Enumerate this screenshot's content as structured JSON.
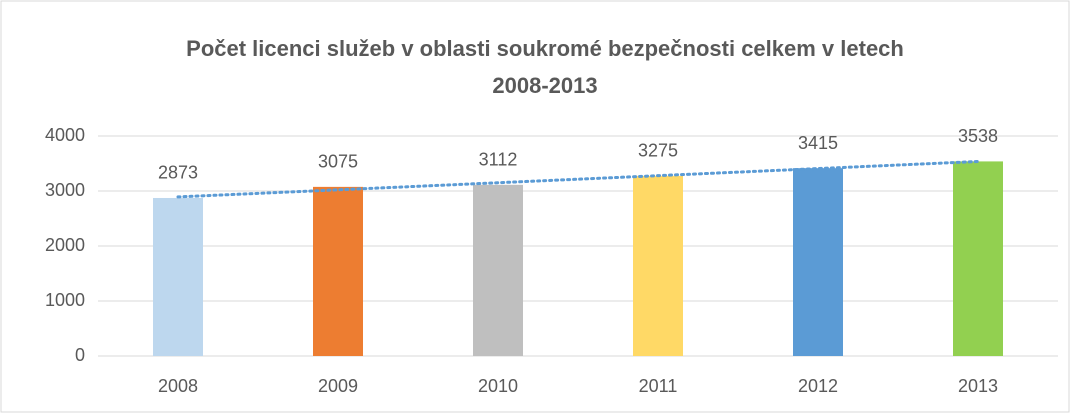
{
  "chart_data": {
    "type": "bar",
    "title": [
      "Počet licenci služeb v oblasti soukromé bezpečnosti celkem v letech",
      "2008-2013"
    ],
    "categories": [
      "2008",
      "2009",
      "2010",
      "2011",
      "2012",
      "2013"
    ],
    "values": [
      2873,
      3075,
      3112,
      3275,
      3415,
      3538
    ],
    "colors": [
      "#bdd7ee",
      "#ed7d31",
      "#bfbfbf",
      "#ffd966",
      "#5b9bd5",
      "#92d050"
    ],
    "ylim": [
      0,
      4000
    ],
    "yticks": [
      0,
      1000,
      2000,
      3000,
      4000
    ],
    "grid": true,
    "data_labels": true,
    "trendline": {
      "kind": "linear",
      "color": "#5b9bd5"
    }
  }
}
